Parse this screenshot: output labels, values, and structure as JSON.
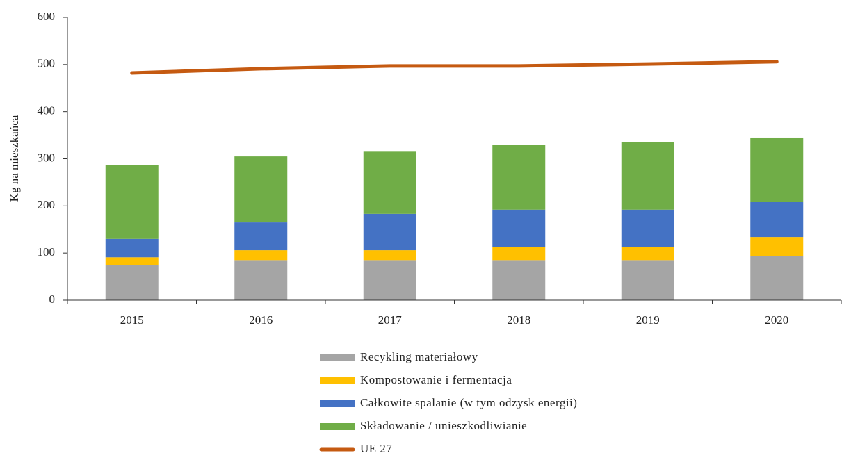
{
  "chart_data": {
    "type": "bar",
    "stacked": true,
    "y_label": "Kg na mieszkańca",
    "categories": [
      "2015",
      "2016",
      "2017",
      "2018",
      "2019",
      "2020"
    ],
    "series": [
      {
        "name": "Recykling materiałowy",
        "color": "#a5a5a5",
        "values": [
          75,
          85,
          85,
          85,
          85,
          93
        ]
      },
      {
        "name": "Kompostowanie i fermentacja",
        "color": "#ffc000",
        "values": [
          16,
          21,
          21,
          28,
          28,
          41
        ]
      },
      {
        "name": "Całkowite spalanie (w tym odzysk energii)",
        "color": "#4472c4",
        "values": [
          39,
          59,
          77,
          79,
          79,
          74
        ]
      },
      {
        "name": "Składowanie / unieszkodliwianie",
        "color": "#70ad47",
        "values": [
          156,
          140,
          132,
          137,
          144,
          137
        ]
      },
      {
        "name": "UE 27",
        "color": "#c55a11",
        "type": "line",
        "values": [
          482,
          491,
          497,
          497,
          501,
          506
        ]
      }
    ],
    "ylim": [
      0,
      600
    ],
    "yticks": [
      0,
      100,
      200,
      300,
      400,
      500,
      600
    ],
    "grid": false,
    "legend": "bottom"
  }
}
